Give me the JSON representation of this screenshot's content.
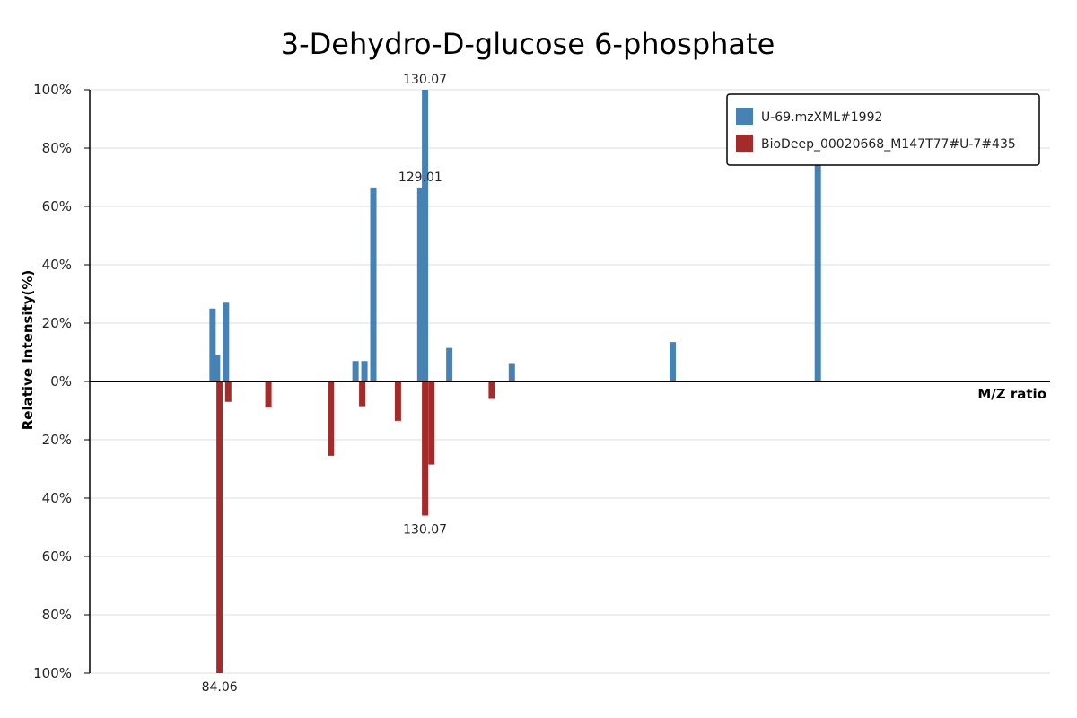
{
  "chart_data": {
    "type": "bar",
    "title": "3-Dehydro-D-glucose 6-phosphate",
    "xlabel": "M/Z ratio",
    "ylabel": "Relative Intensity(%)",
    "grid": true,
    "legend_position": "top-right",
    "xlim": [
      55,
      270
    ],
    "ylim": [
      -100,
      100
    ],
    "ytick_labels": [
      "100%",
      "80%",
      "60%",
      "40%",
      "20%",
      "0%",
      "20%",
      "40%",
      "60%",
      "80%",
      "100%"
    ],
    "series": [
      {
        "name": "U-69.mzXML#1992",
        "color": "#4682b4",
        "direction": "up",
        "points": [
          {
            "x": 82.5,
            "y": 25
          },
          {
            "x": 83.5,
            "y": 9
          },
          {
            "x": 85.5,
            "y": 27
          },
          {
            "x": 114.5,
            "y": 7
          },
          {
            "x": 116.5,
            "y": 7
          },
          {
            "x": 118.5,
            "y": 66.5
          },
          {
            "x": 129.01,
            "y": 66.5,
            "label": "129.01"
          },
          {
            "x": 130.07,
            "y": 100,
            "label": "130.07"
          },
          {
            "x": 135.5,
            "y": 11.5
          },
          {
            "x": 149.5,
            "y": 6
          },
          {
            "x": 185.5,
            "y": 13.5
          },
          {
            "x": 218.0,
            "y": 75
          }
        ]
      },
      {
        "name": "BioDeep_00020668_M147T77#U-7#435",
        "color": "#a52a2a",
        "direction": "down",
        "points": [
          {
            "x": 84.06,
            "y": 100,
            "label": "84.06"
          },
          {
            "x": 86.0,
            "y": 7
          },
          {
            "x": 95.0,
            "y": 9
          },
          {
            "x": 109.0,
            "y": 25.5
          },
          {
            "x": 116.0,
            "y": 8.5
          },
          {
            "x": 130.07,
            "y": 46,
            "label": "130.07"
          },
          {
            "x": 124.0,
            "y": 13.5
          },
          {
            "x": 131.5,
            "y": 28.5
          },
          {
            "x": 145.0,
            "y": 6
          }
        ]
      }
    ]
  }
}
